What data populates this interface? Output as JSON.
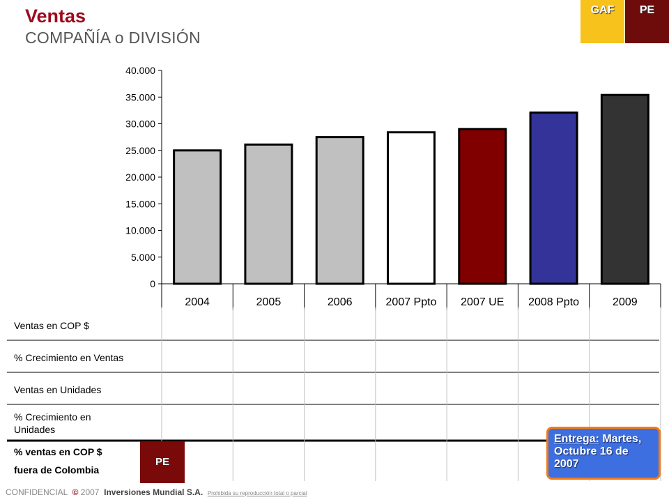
{
  "header": {
    "title": "Ventas",
    "subtitle": "COMPAÑÍA o DIVISIÓN",
    "tag_gaf": "GAF",
    "tag_pe": "PE"
  },
  "chart_data": {
    "type": "bar",
    "categories": [
      "2004",
      "2005",
      "2006",
      "2007 Ppto",
      "2007 UE",
      "2008 Ppto",
      "2009"
    ],
    "values": [
      25000,
      26100,
      27500,
      28400,
      29000,
      32100,
      35400
    ],
    "colors": [
      "#c0c0c0",
      "#c0c0c0",
      "#c0c0c0",
      "#ffffff",
      "#800000",
      "#333399",
      "#333333"
    ],
    "ylim": [
      0,
      40000
    ],
    "yticks": [
      "0",
      "5.000",
      "10.000",
      "15.000",
      "20.000",
      "25.000",
      "30.000",
      "35.000",
      "40.000"
    ],
    "title": "",
    "xlabel": "",
    "ylabel": "",
    "grid": false
  },
  "table": {
    "rows": [
      "Ventas en COP $",
      "% Crecimiento en Ventas",
      "Ventas en Unidades",
      "% Crecimiento en Unidades"
    ],
    "last_row_line1": "% ventas en  COP $",
    "last_row_line2": "fuera  de  Colombia",
    "pe_label": "PE"
  },
  "callout": {
    "label": "Entrega:",
    "line1": " Martes,",
    "line2": "Octubre 16 de",
    "line3": "2007"
  },
  "footer": {
    "confidential": "CONFIDENCIAL",
    "copyright": "©",
    "year": "2007",
    "company": "Inversiones Mundial S.A.",
    "note": "Prohibida su reproducción total o parcial"
  }
}
